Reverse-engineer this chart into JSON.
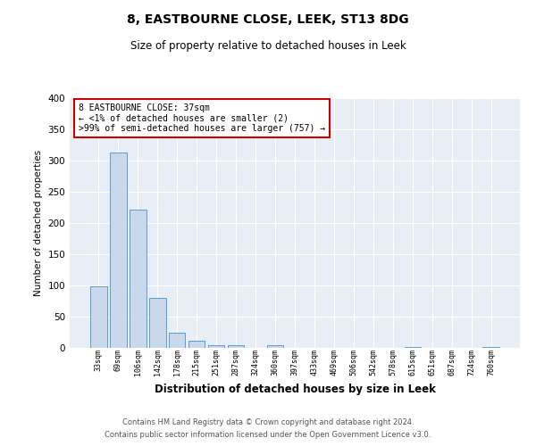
{
  "title": "8, EASTBOURNE CLOSE, LEEK, ST13 8DG",
  "subtitle": "Size of property relative to detached houses in Leek",
  "xlabel": "Distribution of detached houses by size in Leek",
  "ylabel": "Number of detached properties",
  "categories": [
    "33sqm",
    "69sqm",
    "106sqm",
    "142sqm",
    "178sqm",
    "215sqm",
    "251sqm",
    "287sqm",
    "324sqm",
    "360sqm",
    "397sqm",
    "433sqm",
    "469sqm",
    "506sqm",
    "542sqm",
    "578sqm",
    "615sqm",
    "651sqm",
    "687sqm",
    "724sqm",
    "760sqm"
  ],
  "values": [
    99,
    313,
    222,
    80,
    25,
    11,
    5,
    5,
    0,
    5,
    0,
    0,
    0,
    0,
    0,
    0,
    2,
    0,
    0,
    0,
    2
  ],
  "bar_color": "#c9d9eb",
  "bar_edge_color": "#5b9bd5",
  "highlight_box_color": "#cc0000",
  "plot_bg_color": "#e8eef5",
  "ylim": [
    0,
    400
  ],
  "yticks": [
    0,
    50,
    100,
    150,
    200,
    250,
    300,
    350,
    400
  ],
  "annotation_title": "8 EASTBOURNE CLOSE: 37sqm",
  "annotation_line2": "← <1% of detached houses are smaller (2)",
  "annotation_line3": ">99% of semi-detached houses are larger (757) →",
  "footer_line1": "Contains HM Land Registry data © Crown copyright and database right 2024.",
  "footer_line2": "Contains public sector information licensed under the Open Government Licence v3.0."
}
